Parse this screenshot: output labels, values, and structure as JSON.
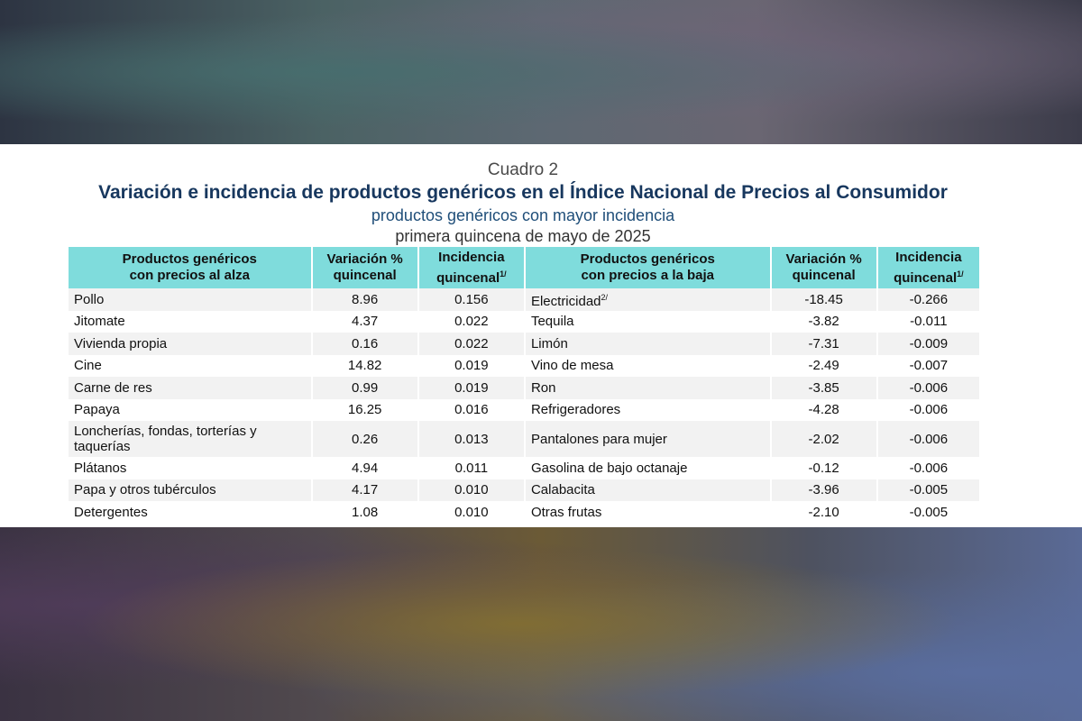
{
  "header": {
    "cuadro": "Cuadro 2",
    "title": "Variación e incidencia de productos genéricos en el Índice Nacional de Precios al Consumidor",
    "subtitle": "productos genéricos con mayor incidencia",
    "period": "primera quincena de mayo de 2025"
  },
  "columns": {
    "alza_line1": "Productos genéricos",
    "alza_line2": "con precios al alza",
    "var_line1": "Variación %",
    "var_line2": "quincenal",
    "inc_line1": "Incidencia",
    "inc_line2": "quincenal",
    "inc_note": "1/",
    "baja_line1": "Productos genéricos",
    "baja_line2": "con precios a la baja"
  },
  "alza": [
    {
      "name": "Pollo",
      "var": "8.96",
      "inc": "0.156"
    },
    {
      "name": "Jitomate",
      "var": "4.37",
      "inc": "0.022"
    },
    {
      "name": "Vivienda propia",
      "var": "0.16",
      "inc": "0.022"
    },
    {
      "name": "Cine",
      "var": "14.82",
      "inc": "0.019"
    },
    {
      "name": "Carne de res",
      "var": "0.99",
      "inc": "0.019"
    },
    {
      "name": "Papaya",
      "var": "16.25",
      "inc": "0.016"
    },
    {
      "name": "Loncherías, fondas, torterías y taquerías",
      "var": "0.26",
      "inc": "0.013"
    },
    {
      "name": "Plátanos",
      "var": "4.94",
      "inc": "0.011"
    },
    {
      "name": "Papa y otros tubérculos",
      "var": "4.17",
      "inc": "0.010"
    },
    {
      "name": "Detergentes",
      "var": "1.08",
      "inc": "0.010"
    }
  ],
  "baja": [
    {
      "name": "Electricidad",
      "note": "2/",
      "var": "-18.45",
      "inc": "-0.266"
    },
    {
      "name": "Tequila",
      "var": "-3.82",
      "inc": "-0.011"
    },
    {
      "name": "Limón",
      "var": "-7.31",
      "inc": "-0.009"
    },
    {
      "name": "Vino de mesa",
      "var": "-2.49",
      "inc": "-0.007"
    },
    {
      "name": "Ron",
      "var": "-3.85",
      "inc": "-0.006"
    },
    {
      "name": "Refrigeradores",
      "var": "-4.28",
      "inc": "-0.006"
    },
    {
      "name": "Pantalones para mujer",
      "var": "-2.02",
      "inc": "-0.006"
    },
    {
      "name": "Gasolina de bajo octanaje",
      "var": "-0.12",
      "inc": "-0.006"
    },
    {
      "name": "Calabacita",
      "var": "-3.96",
      "inc": "-0.005"
    },
    {
      "name": "Otras frutas",
      "var": "-2.10",
      "inc": "-0.005"
    }
  ],
  "colors": {
    "header_bg": "#7fdcdc",
    "title": "#17375e",
    "subtitle": "#1f4e79",
    "stripe": "#f2f2f2"
  }
}
